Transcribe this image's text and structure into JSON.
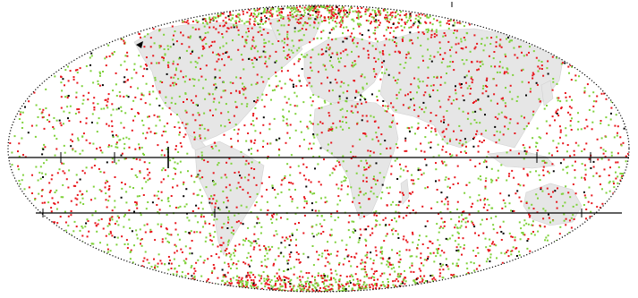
{
  "map": {
    "projection": "mollweide",
    "land_color": "#e6e6e6",
    "land_edge_color": "#d2d2d2",
    "outline_color": "#000000",
    "reference_line_color": "#000000",
    "background_color": "#ffffff"
  },
  "scatter": {
    "series": [
      {
        "color": "#e8151b",
        "share": 0.5,
        "icon": "square-dot"
      },
      {
        "color": "#7fd13a",
        "share": 0.5,
        "icon": "square-dot"
      }
    ],
    "polar_concentration": "high",
    "markers_color": "#000000"
  }
}
